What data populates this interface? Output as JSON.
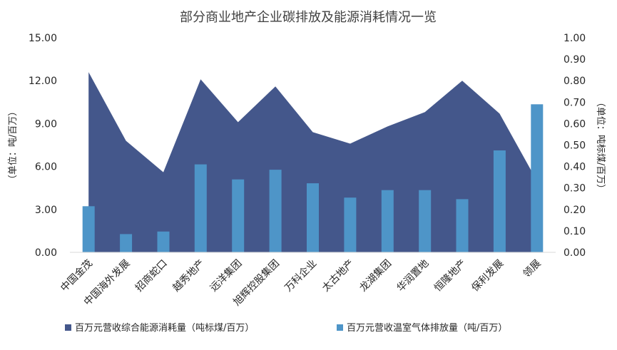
{
  "chart_data": {
    "type": "bar",
    "title": "部分商业地产企业碳排放及能源消耗情况一览",
    "categories": [
      "中国金茂",
      "中国海外发展",
      "招商蛇口",
      "越秀地产",
      "远洋集团",
      "旭辉控股集团",
      "万科企业",
      "太古地产",
      "龙湖集团",
      "华润置地",
      "恒隆地产",
      "保利发展",
      "领展"
    ],
    "series": [
      {
        "name": "百万元营收综合能源消耗量（吨标煤/百万）",
        "type": "area",
        "axis": "left",
        "color": "#44578B",
        "values": [
          12.6,
          7.8,
          5.6,
          12.1,
          9.1,
          11.6,
          8.4,
          7.6,
          8.8,
          9.8,
          12.0,
          9.7,
          5.0
        ]
      },
      {
        "name": "百万元营收温室气体排放量（吨/百万）",
        "type": "bar",
        "axis": "right",
        "color": "#4E95C8",
        "values": [
          0.215,
          0.085,
          0.097,
          0.41,
          0.34,
          0.385,
          0.322,
          0.255,
          0.29,
          0.29,
          0.248,
          0.475,
          0.69
        ]
      }
    ],
    "y_left": {
      "label": "（单位：吨/百万）",
      "min": 0,
      "max": 15,
      "step": 3,
      "ticks": [
        "0.00",
        "3.00",
        "6.00",
        "9.00",
        "12.00",
        "15.00"
      ]
    },
    "y_right": {
      "label": "（单位：吨标煤/百万）",
      "min": 0,
      "max": 1,
      "step": 0.1,
      "ticks": [
        "0.00",
        "0.10",
        "0.20",
        "0.30",
        "0.40",
        "0.50",
        "0.60",
        "0.70",
        "0.80",
        "0.90",
        "1.00"
      ]
    },
    "grid": false,
    "legend_position": "bottom"
  }
}
